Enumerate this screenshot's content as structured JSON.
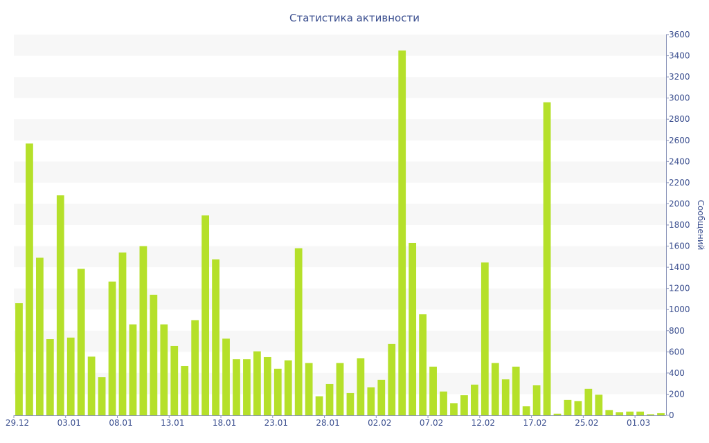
{
  "chart_data": {
    "type": "bar",
    "title": "Статистика активности",
    "xlabel": "",
    "ylabel": "Сообщений",
    "ylim": [
      0,
      3600
    ],
    "y_ticks": [
      0,
      200,
      400,
      600,
      800,
      1000,
      1200,
      1400,
      1600,
      1800,
      2000,
      2200,
      2400,
      2600,
      2800,
      3000,
      3200,
      3400,
      3600
    ],
    "y_axis_side": "right",
    "grid": "alternating horizontal bands",
    "bar_color": "#b5e02a",
    "band_color": "#f7f7f7",
    "text_color": "#3b4f8f",
    "x_tick_labels": [
      {
        "index": 0,
        "label": "29.12"
      },
      {
        "index": 5,
        "label": "03.01"
      },
      {
        "index": 10,
        "label": "08.01"
      },
      {
        "index": 15,
        "label": "13.01"
      },
      {
        "index": 20,
        "label": "18.01"
      },
      {
        "index": 25,
        "label": "23.01"
      },
      {
        "index": 30,
        "label": "28.01"
      },
      {
        "index": 35,
        "label": "02.02"
      },
      {
        "index": 40,
        "label": "07.02"
      },
      {
        "index": 45,
        "label": "12.02"
      },
      {
        "index": 50,
        "label": "17.02"
      },
      {
        "index": 55,
        "label": "25.02"
      },
      {
        "index": 60,
        "label": "01.03"
      }
    ],
    "values": [
      1060,
      2570,
      1490,
      720,
      2080,
      735,
      1385,
      555,
      360,
      1265,
      1540,
      860,
      1600,
      1140,
      860,
      655,
      465,
      900,
      1890,
      1475,
      725,
      530,
      530,
      605,
      550,
      440,
      520,
      1580,
      495,
      180,
      295,
      495,
      210,
      540,
      265,
      335,
      675,
      3450,
      1630,
      955,
      460,
      225,
      115,
      190,
      290,
      1445,
      495,
      340,
      460,
      85,
      285,
      2960,
      15,
      145,
      135,
      250,
      195,
      50,
      30,
      35,
      35,
      10,
      20
    ]
  }
}
